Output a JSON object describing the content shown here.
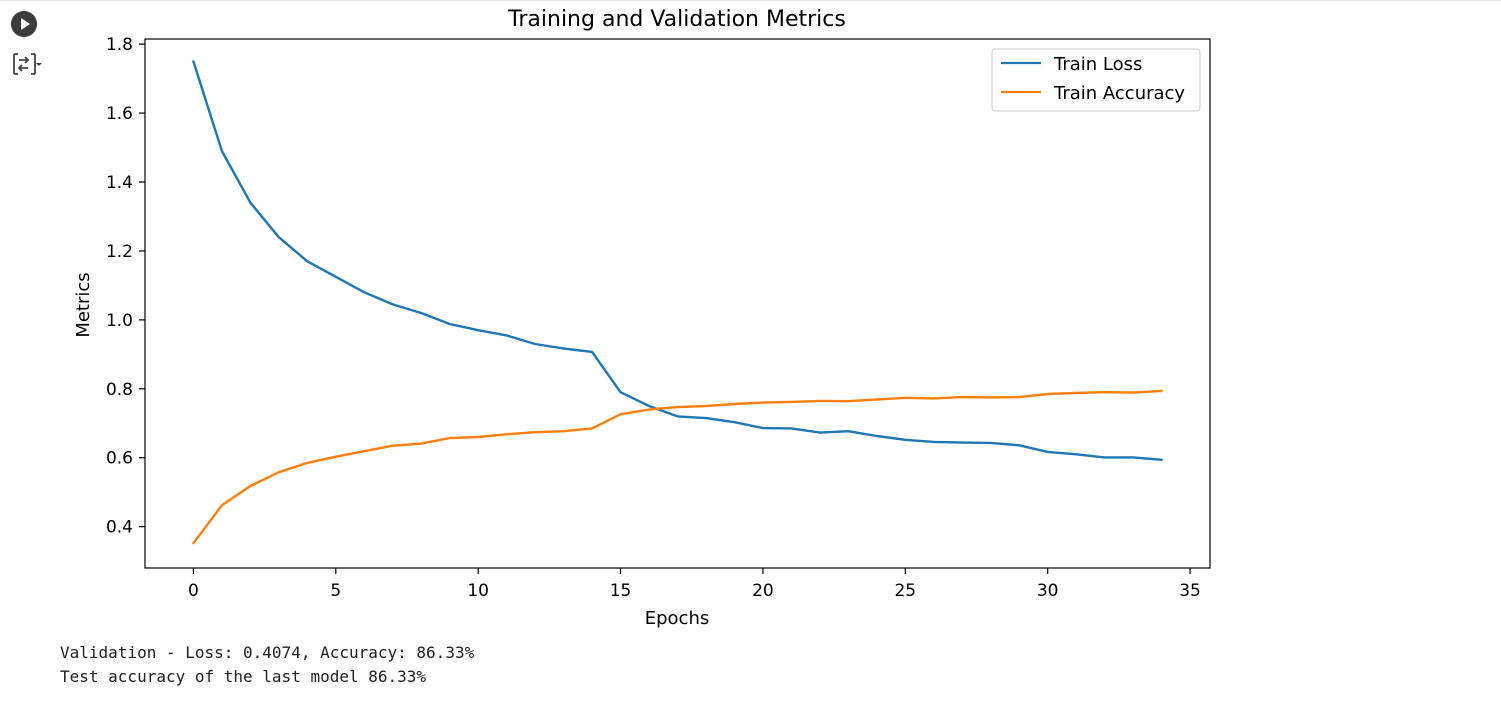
{
  "cell": {
    "run_icon": "play-circle-icon",
    "output_icon": "output-toggle-icon"
  },
  "chart_data": {
    "type": "line",
    "title": "Training and Validation Metrics",
    "xlabel": "Epochs",
    "ylabel": "Metrics",
    "xlim": [
      -1.7,
      35.7
    ],
    "ylim": [
      0.28,
      1.815
    ],
    "xticks": [
      0,
      5,
      10,
      15,
      20,
      25,
      30,
      35
    ],
    "yticks": [
      0.4,
      0.6,
      0.8,
      1.0,
      1.2,
      1.4,
      1.6,
      1.8
    ],
    "ytick_labels": [
      "0.4",
      "0.6",
      "0.8",
      "1.0",
      "1.2",
      "1.4",
      "1.6",
      "1.8"
    ],
    "grid": false,
    "legend": "top-right",
    "x": [
      0,
      1,
      2,
      3,
      4,
      5,
      6,
      7,
      8,
      9,
      10,
      11,
      12,
      13,
      14,
      15,
      16,
      17,
      18,
      19,
      20,
      21,
      22,
      23,
      24,
      25,
      26,
      27,
      28,
      29,
      30,
      31,
      32,
      33,
      34
    ],
    "series": [
      {
        "name": "Train Loss",
        "color": "#1f77b4",
        "values": [
          1.75,
          1.49,
          1.34,
          1.24,
          1.17,
          1.125,
          1.08,
          1.045,
          1.02,
          0.988,
          0.97,
          0.955,
          0.93,
          0.917,
          0.907,
          0.79,
          0.75,
          0.72,
          0.715,
          0.703,
          0.686,
          0.685,
          0.673,
          0.677,
          0.663,
          0.652,
          0.646,
          0.644,
          0.643,
          0.636,
          0.617,
          0.61,
          0.601,
          0.601,
          0.594
        ]
      },
      {
        "name": "Train Accuracy",
        "color": "#ff7f0e",
        "values": [
          0.352,
          0.462,
          0.518,
          0.558,
          0.585,
          0.603,
          0.619,
          0.635,
          0.641,
          0.657,
          0.66,
          0.668,
          0.674,
          0.677,
          0.685,
          0.726,
          0.74,
          0.747,
          0.75,
          0.756,
          0.76,
          0.762,
          0.765,
          0.764,
          0.769,
          0.774,
          0.772,
          0.776,
          0.775,
          0.776,
          0.785,
          0.788,
          0.79,
          0.789,
          0.794
        ]
      }
    ]
  },
  "output": {
    "line1": "Validation - Loss: 0.4074, Accuracy: 86.33%",
    "line2": "Test accuracy of the last model 86.33%"
  }
}
